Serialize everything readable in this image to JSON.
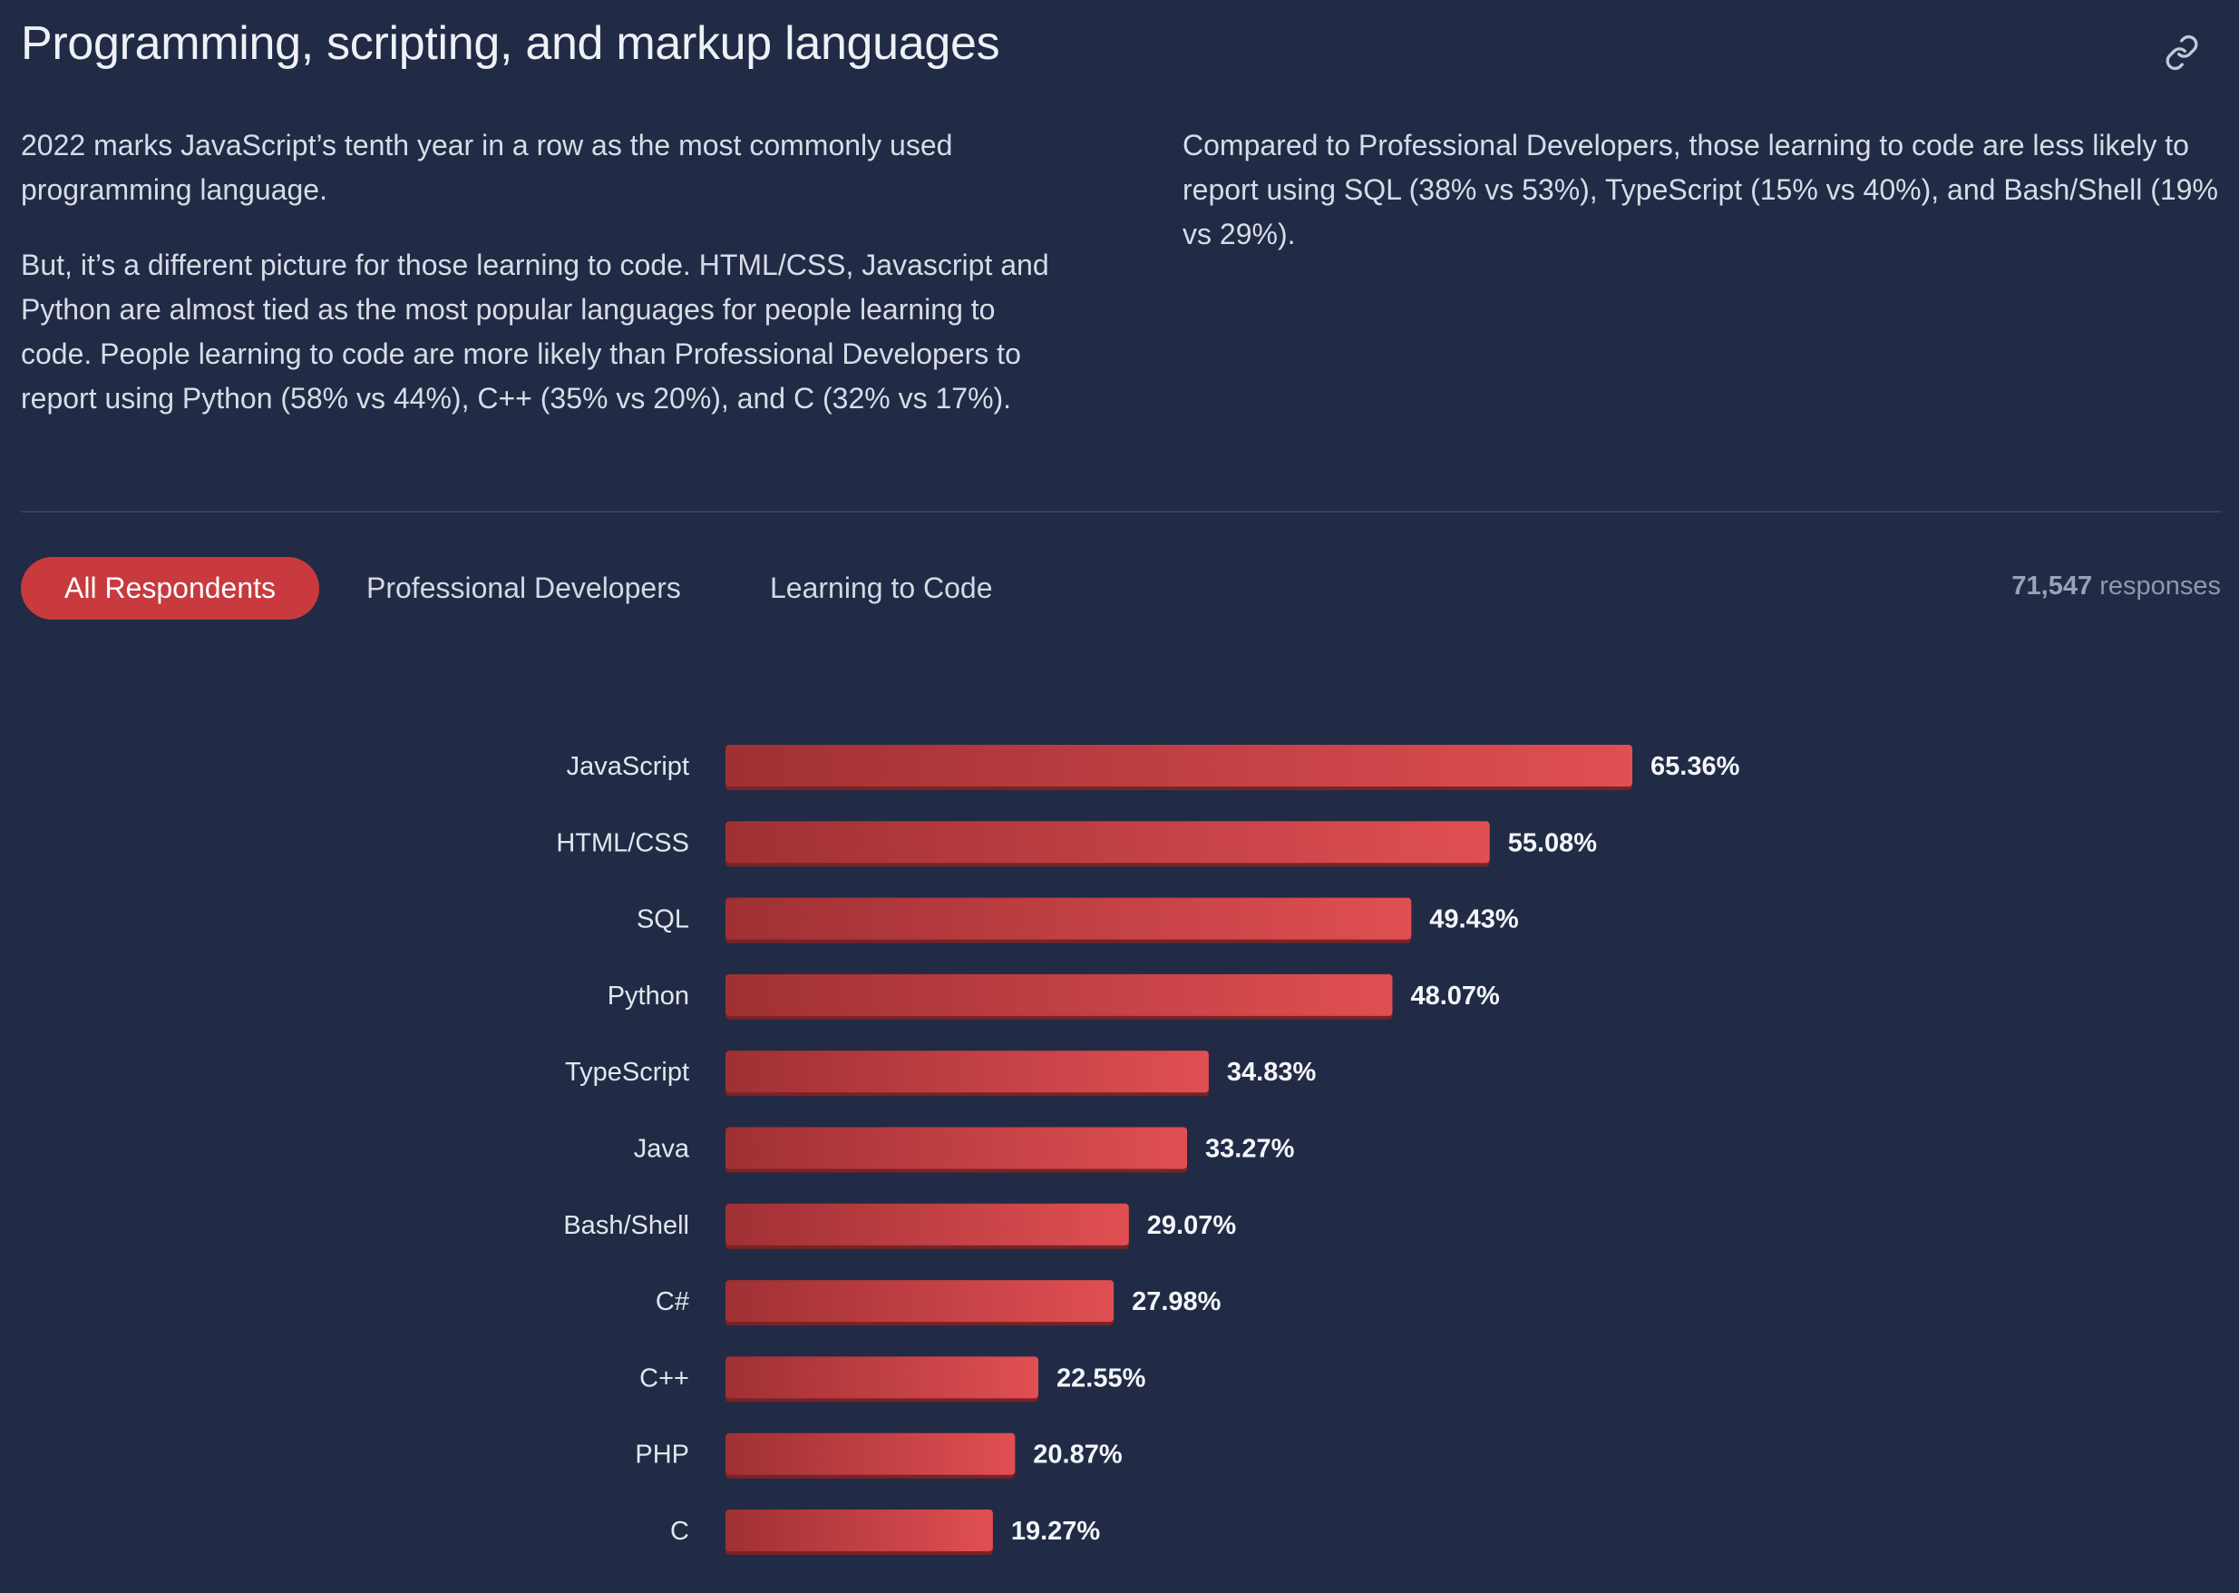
{
  "header": {
    "title": "Programming, scripting, and markup languages",
    "link_icon": "link-icon"
  },
  "intro": {
    "left": [
      "2022 marks JavaScript’s tenth year in a row as the most commonly used programming language.",
      "But, it’s a different picture for those learning to code. HTML/CSS, Javascript and Python are almost tied as the most popular languages for people learning to code. People learning to code are more likely than Professional Developers to report using Python (58% vs 44%), C++ (35% vs 20%), and C (32% vs 17%)."
    ],
    "right": [
      "Compared to Professional Developers, those learning to code are less likely to report using SQL (38% vs 53%), TypeScript (15% vs 40%), and Bash/Shell (19% vs 29%)."
    ]
  },
  "tabs": [
    {
      "label": "All Respondents",
      "active": true
    },
    {
      "label": "Professional Developers",
      "active": false
    },
    {
      "label": "Learning to Code",
      "active": false
    }
  ],
  "responses": {
    "count": "71,547",
    "suffix": "responses"
  },
  "colors": {
    "bar_start": "#9f3034",
    "bar_end": "#e04f52",
    "bar_shadow": "#7a2226",
    "accent": "#c83a3e"
  },
  "chart_data": {
    "type": "bar",
    "orientation": "horizontal",
    "categories": [
      "JavaScript",
      "HTML/CSS",
      "SQL",
      "Python",
      "TypeScript",
      "Java",
      "Bash/Shell",
      "C#",
      "C++",
      "PHP",
      "C"
    ],
    "values": [
      65.36,
      55.08,
      49.43,
      48.07,
      34.83,
      33.27,
      29.07,
      27.98,
      22.55,
      20.87,
      19.27
    ],
    "value_labels": [
      "65.36%",
      "55.08%",
      "49.43%",
      "48.07%",
      "34.83%",
      "33.27%",
      "29.07%",
      "27.98%",
      "22.55%",
      "20.87%",
      "19.27%"
    ],
    "unit": "%",
    "title": "",
    "xlabel": "",
    "ylabel": "",
    "grid": false
  }
}
